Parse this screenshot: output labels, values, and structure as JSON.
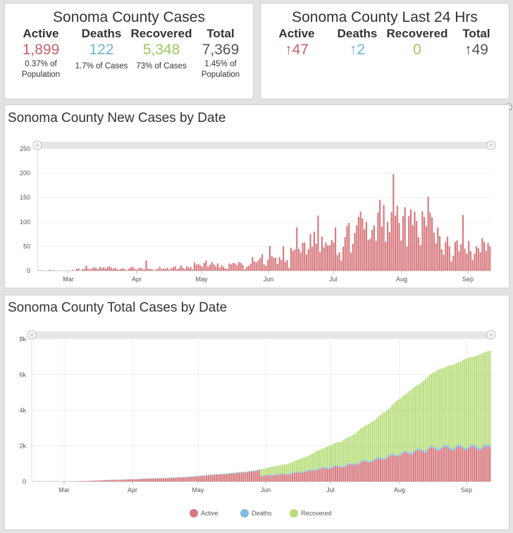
{
  "cases_panel": {
    "title": "Sonoma County Cases",
    "columns": [
      {
        "label": "Active",
        "value": "1,899",
        "sub": [
          "0.37% of",
          "Population"
        ],
        "color": "#c9636b"
      },
      {
        "label": "Deaths",
        "value": "122",
        "sub": [
          "1.7% of Cases"
        ],
        "color": "#6db6d9"
      },
      {
        "label": "Recovered",
        "value": "5,348",
        "sub": [
          "73% of Cases"
        ],
        "color": "#9cc95a"
      },
      {
        "label": "Total",
        "value": "7,369",
        "sub": [
          "1.45% of",
          "Population"
        ],
        "color": "#555555"
      }
    ]
  },
  "last24_panel": {
    "title": "Sonoma County Last 24 Hrs",
    "columns": [
      {
        "label": "Active",
        "value": "↑47",
        "color": "#c9636b"
      },
      {
        "label": "Deaths",
        "value": "↑2",
        "color": "#6db6d9"
      },
      {
        "label": "Recovered",
        "value": "0",
        "color": "#9cc95a"
      },
      {
        "label": "Total",
        "value": "↑49",
        "color": "#555555"
      }
    ]
  },
  "new_cases_chart": {
    "title": "Sonoma County New Cases by Date",
    "chart_data": {
      "type": "bar",
      "ylim": [
        0,
        250
      ],
      "yticks": [
        0,
        50,
        100,
        150,
        200,
        250
      ],
      "xticks": [
        "Mar",
        "Apr",
        "May",
        "Jun",
        "Jul",
        "Aug",
        "Sep"
      ],
      "color": "#d7797e",
      "values": [
        0,
        1,
        0,
        0,
        0,
        0,
        2,
        0,
        1,
        0,
        0,
        0,
        0,
        0,
        0,
        0,
        0,
        0,
        2,
        0,
        4,
        5,
        0,
        3,
        4,
        10,
        4,
        3,
        5,
        7,
        6,
        3,
        8,
        5,
        7,
        4,
        7,
        9,
        6,
        4,
        6,
        3,
        2,
        4,
        5,
        3,
        1,
        4,
        7,
        8,
        4,
        2,
        5,
        6,
        4,
        3,
        21,
        4,
        4,
        3,
        1,
        2,
        4,
        8,
        3,
        5,
        4,
        6,
        2,
        5,
        7,
        9,
        3,
        5,
        11,
        6,
        3,
        9,
        6,
        8,
        3,
        17,
        12,
        14,
        11,
        8,
        16,
        21,
        8,
        12,
        18,
        13,
        9,
        15,
        6,
        11,
        8,
        5,
        4,
        15,
        13,
        16,
        15,
        11,
        18,
        16,
        12,
        3,
        8,
        10,
        14,
        28,
        19,
        17,
        21,
        26,
        34,
        13,
        10,
        22,
        51,
        30,
        27,
        26,
        14,
        28,
        22,
        50,
        18,
        22,
        6,
        47,
        41,
        44,
        89,
        45,
        37,
        57,
        58,
        33,
        44,
        75,
        49,
        80,
        55,
        113,
        38,
        70,
        48,
        58,
        52,
        52,
        63,
        58,
        89,
        32,
        38,
        21,
        49,
        69,
        92,
        98,
        37,
        55,
        77,
        93,
        110,
        121,
        107,
        85,
        100,
        63,
        66,
        84,
        93,
        61,
        119,
        145,
        90,
        135,
        59,
        100,
        79,
        120,
        198,
        113,
        133,
        98,
        62,
        112,
        130,
        50,
        112,
        126,
        93,
        121,
        102,
        69,
        52,
        122,
        110,
        91,
        152,
        119,
        109,
        78,
        56,
        89,
        71,
        44,
        33,
        59,
        70,
        50,
        19,
        31,
        59,
        62,
        40,
        54,
        114,
        45,
        35,
        61,
        40,
        22,
        35,
        50,
        46,
        38,
        67,
        59,
        41,
        57,
        50
      ]
    }
  },
  "total_cases_chart": {
    "title": "Sonoma County Total Cases by Date",
    "chart_data": {
      "type": "bar",
      "stacked": true,
      "ylim": [
        0,
        8000
      ],
      "yticks": [
        "0",
        "2k",
        "4k",
        "6k",
        "8k"
      ],
      "xticks": [
        "Mar",
        "Apr",
        "May",
        "Jun",
        "Jul",
        "Aug",
        "Sep"
      ],
      "start_total": 2,
      "series": [
        {
          "name": "Active",
          "color": "#d7797e"
        },
        {
          "name": "Deaths",
          "color": "#7fbcdf"
        },
        {
          "name": "Recovered",
          "color": "#b8dd7c"
        }
      ],
      "final": {
        "active": 1899,
        "deaths": 122,
        "recovered": 5348,
        "total": 7369
      },
      "legend_position": "bottom"
    }
  }
}
